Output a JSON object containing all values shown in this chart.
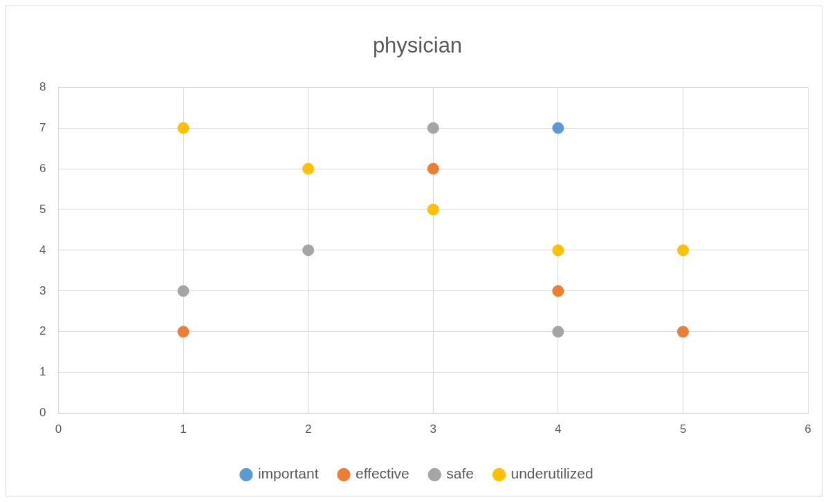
{
  "chart_data": {
    "type": "scatter",
    "title": "physician",
    "series": [
      {
        "name": "important",
        "color": "#5b9bd5",
        "x": [
          4
        ],
        "values": [
          7
        ]
      },
      {
        "name": "effective",
        "color": "#ed7d31",
        "x": [
          1,
          3,
          4,
          5
        ],
        "values": [
          2,
          6,
          3,
          2
        ]
      },
      {
        "name": "safe",
        "color": "#a5a5a5",
        "x": [
          1,
          2,
          3,
          4
        ],
        "values": [
          3,
          4,
          7,
          2
        ]
      },
      {
        "name": "underutilized",
        "color": "#ffc000",
        "x": [
          1,
          2,
          3,
          4,
          5
        ],
        "values": [
          7,
          6,
          5,
          4,
          4
        ]
      }
    ],
    "xlim": [
      0,
      6
    ],
    "xticks": [
      0,
      1,
      2,
      3,
      4,
      5,
      6
    ],
    "ylim": [
      0,
      8
    ],
    "yticks": [
      0,
      1,
      2,
      3,
      4,
      5,
      6,
      7,
      8
    ],
    "grid": true,
    "legend": "bottom",
    "marker": "circle"
  }
}
